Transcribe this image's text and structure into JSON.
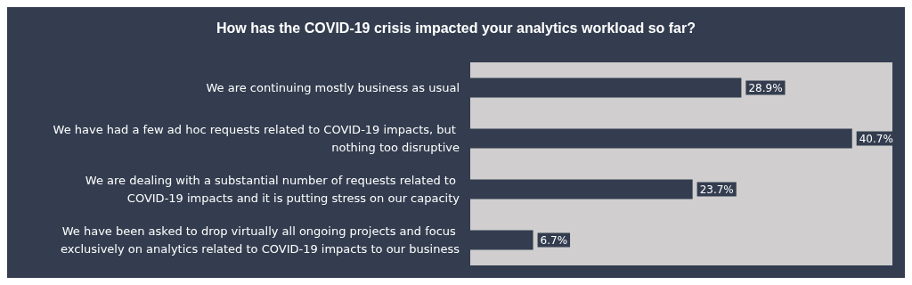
{
  "chart_data": {
    "type": "bar",
    "orientation": "horizontal",
    "title": "How has the COVID-19 crisis impacted your analytics workload so far?",
    "categories": [
      "We are continuing mostly business as usual",
      "We have had a few ad hoc requests related to COVID-19 impacts, but nothing too disruptive",
      "We are dealing with a substantial number of requests related to COVID-19 impacts and it is putting stress on our capacity",
      "We have been asked to drop virtually all ongoing projects and focus exclusively on analytics related to COVID-19 impacts to our business"
    ],
    "values": [
      28.9,
      40.7,
      23.7,
      6.7
    ],
    "value_labels": [
      "28.9%",
      "40.7%",
      "23.7%",
      "6.7%"
    ],
    "color": "#333d4f",
    "xlim": [
      0,
      45
    ],
    "tick_labels": "y",
    "grid": false
  }
}
